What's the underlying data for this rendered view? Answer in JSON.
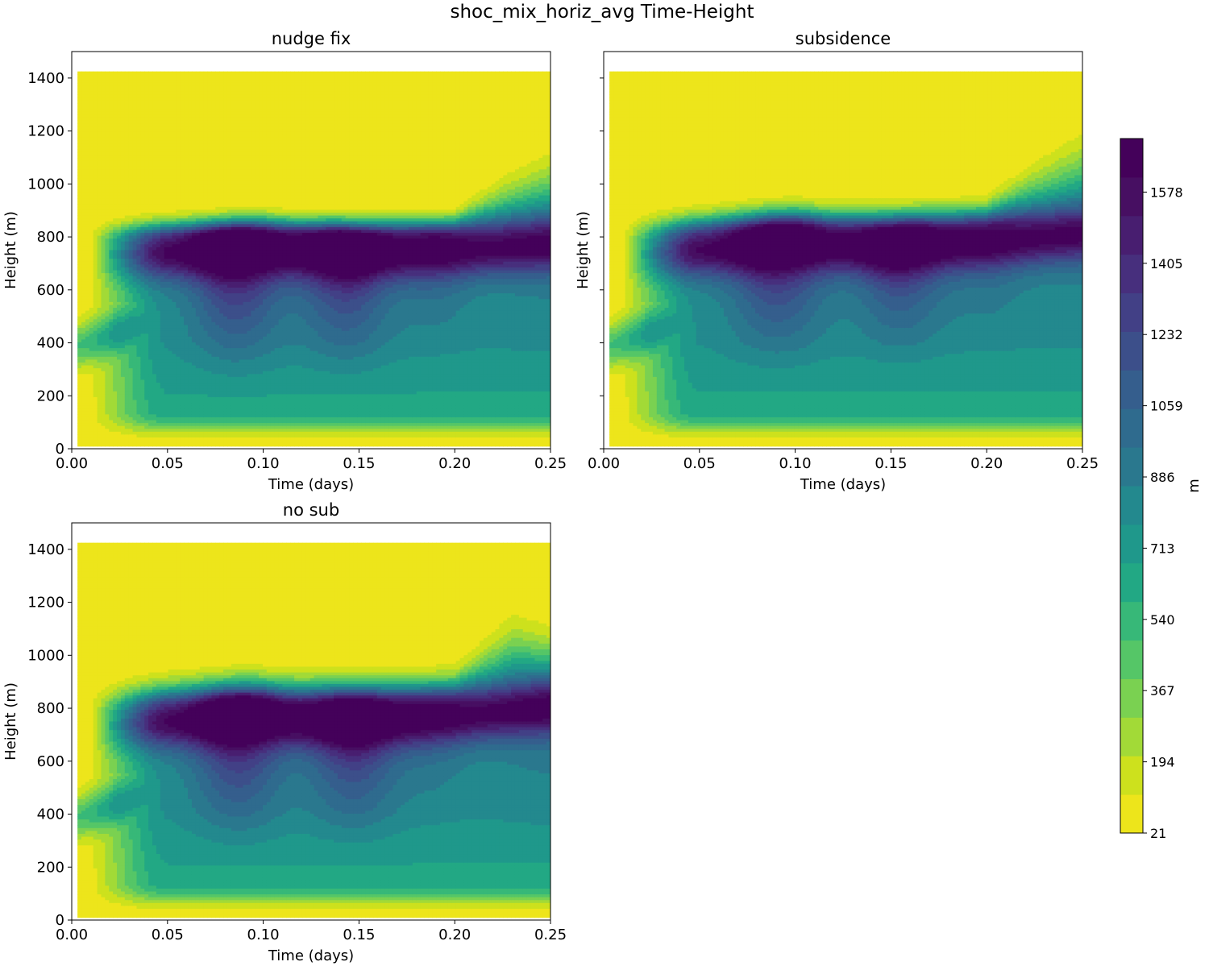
{
  "title": "shoc_mix_horiz_avg Time-Height",
  "chart_data": [
    {
      "type": "heatmap",
      "title": "nudge fix",
      "xlabel": "Time (days)",
      "ylabel": "Height (m)",
      "xlim": [
        0.0,
        0.25
      ],
      "ylim": [
        0,
        1500
      ],
      "xticks": [
        "0.00",
        "0.05",
        "0.10",
        "0.15",
        "0.20",
        "0.25"
      ],
      "yticks": [
        "0",
        "200",
        "400",
        "600",
        "800",
        "1000",
        "1200",
        "1400"
      ],
      "data_extent": {
        "x": [
          0.003,
          0.25
        ],
        "y": [
          10,
          1425
        ]
      },
      "boundary_layer_top": [
        [
          0.0,
          720
        ],
        [
          0.012,
          790
        ],
        [
          0.05,
          800
        ],
        [
          0.1,
          810
        ],
        [
          0.15,
          800
        ],
        [
          0.2,
          810
        ],
        [
          0.25,
          830
        ]
      ],
      "upper_fringe": [
        [
          0.2,
          0
        ],
        [
          0.225,
          60
        ],
        [
          0.25,
          100
        ]
      ],
      "thermals": [
        {
          "time": 0.086,
          "strength": 1.0,
          "width": 0.017,
          "bottom": 160
        },
        {
          "time": 0.143,
          "strength": 0.92,
          "width": 0.017,
          "bottom": 170
        },
        {
          "time": 0.19,
          "strength": 0.35,
          "width": 0.014,
          "bottom": 240
        }
      ],
      "late_mixing": 0.55,
      "max_value_region": "Height 580-760 m near Time 0.085 and 0.145 days"
    },
    {
      "type": "heatmap",
      "title": "subsidence",
      "xlabel": "Time (days)",
      "ylabel": "Height (m)",
      "xlim": [
        0.0,
        0.25
      ],
      "ylim": [
        0,
        1500
      ],
      "xticks": [
        "0.00",
        "0.05",
        "0.10",
        "0.15",
        "0.20",
        "0.25"
      ],
      "yticks": [],
      "data_extent": {
        "x": [
          0.003,
          0.25
        ],
        "y": [
          10,
          1425
        ]
      },
      "boundary_layer_top": [
        [
          0.0,
          720
        ],
        [
          0.012,
          790
        ],
        [
          0.05,
          810
        ],
        [
          0.1,
          830
        ],
        [
          0.15,
          820
        ],
        [
          0.2,
          840
        ],
        [
          0.25,
          870
        ]
      ],
      "upper_fringe": [
        [
          0.2,
          10
        ],
        [
          0.225,
          70
        ],
        [
          0.25,
          120
        ]
      ],
      "thermals": [
        {
          "time": 0.091,
          "strength": 0.9,
          "width": 0.018,
          "bottom": 200
        },
        {
          "time": 0.155,
          "strength": 0.78,
          "width": 0.017,
          "bottom": 230
        },
        {
          "time": 0.2,
          "strength": 0.3,
          "width": 0.014,
          "bottom": 260
        }
      ],
      "late_mixing": 0.45,
      "max_value_region": "Height 620-760 m near Time 0.09 days"
    },
    {
      "type": "heatmap",
      "title": "no sub",
      "xlabel": "Time (days)",
      "ylabel": "Height (m)",
      "xlim": [
        0.0,
        0.25
      ],
      "ylim": [
        0,
        1500
      ],
      "xticks": [
        "0.00",
        "0.05",
        "0.10",
        "0.15",
        "0.20",
        "0.25"
      ],
      "yticks": [
        "0",
        "200",
        "400",
        "600",
        "800",
        "1000",
        "1200",
        "1400"
      ],
      "data_extent": {
        "x": [
          0.003,
          0.25
        ],
        "y": [
          10,
          1425
        ]
      },
      "boundary_layer_top": [
        [
          0.0,
          720
        ],
        [
          0.012,
          790
        ],
        [
          0.05,
          810
        ],
        [
          0.1,
          820
        ],
        [
          0.15,
          810
        ],
        [
          0.2,
          830
        ],
        [
          0.25,
          860
        ]
      ],
      "upper_fringe": [
        [
          0.2,
          20
        ],
        [
          0.23,
          110
        ],
        [
          0.25,
          80
        ]
      ],
      "thermals": [
        {
          "time": 0.087,
          "strength": 0.98,
          "width": 0.017,
          "bottom": 170
        },
        {
          "time": 0.147,
          "strength": 0.92,
          "width": 0.017,
          "bottom": 180
        },
        {
          "time": 0.19,
          "strength": 0.3,
          "width": 0.014,
          "bottom": 260
        }
      ],
      "late_mixing": 0.7,
      "max_value_region": "Height 600-760 m near Time 0.087 and 0.147 days"
    }
  ],
  "colorbar": {
    "label": "m",
    "min": 21,
    "max": 1708,
    "levels": 19,
    "ticks": [
      21,
      194,
      367,
      540,
      713,
      886,
      1059,
      1232,
      1405,
      1578
    ],
    "colors": [
      "#ede51b",
      "#cde11d",
      "#a2da37",
      "#7ad151",
      "#55c667",
      "#37b878",
      "#22a884",
      "#1f988b",
      "#23898e",
      "#2a788e",
      "#2f6b8e",
      "#355e8d",
      "#3c4f8a",
      "#424086",
      "#472f7d",
      "#481e70",
      "#470f62",
      "#44015a"
    ]
  }
}
